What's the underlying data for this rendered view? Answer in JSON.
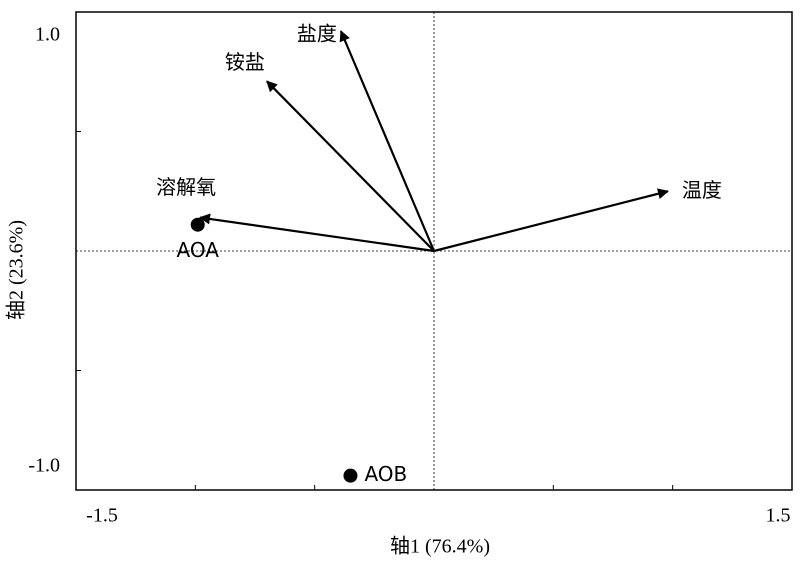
{
  "chart_data": {
    "type": "biplot",
    "x_label": "轴1 (76.4%)",
    "y_label": "轴2 (23.6%)",
    "xlim": [
      -1.5,
      1.5
    ],
    "ylim": [
      -1,
      1
    ],
    "xticks": [
      -1.5,
      1.5
    ],
    "yticks": [
      {
        "value": 1,
        "label": "1.0"
      },
      {
        "value": -1,
        "label": "-1.0"
      }
    ],
    "xticks_minor": [
      -1,
      -0.5,
      0.5,
      1
    ],
    "yticks_minor": [
      -0.5,
      0.5
    ],
    "color": "#000000",
    "arrows": [
      {
        "name": "盐度",
        "x": -0.39,
        "y": 0.92
      },
      {
        "name": "铵盐",
        "x": -0.7,
        "y": 0.71
      },
      {
        "name": "溶解氧",
        "x": -0.98,
        "y": 0.14
      },
      {
        "name": "温度",
        "x": 0.98,
        "y": 0.25
      }
    ],
    "points": [
      {
        "name": "AOA",
        "x": -0.99,
        "y": 0.11
      },
      {
        "name": "AOB",
        "x": -0.35,
        "y": -0.94
      }
    ]
  }
}
